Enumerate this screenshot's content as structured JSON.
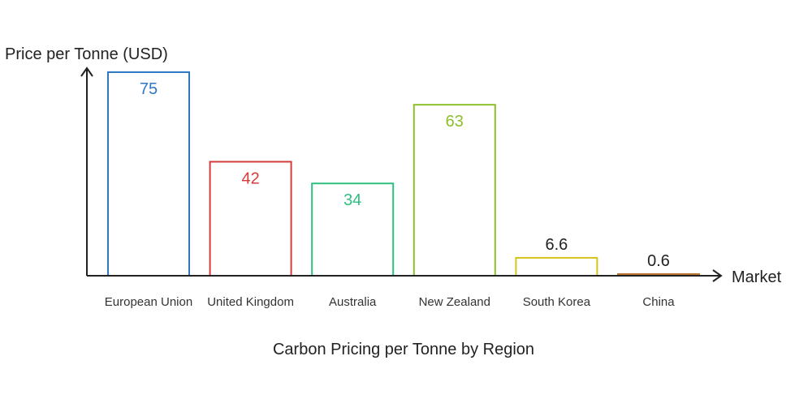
{
  "chart_data": {
    "type": "bar",
    "title": "Carbon Pricing per Tonne by Region",
    "xlabel": "Market",
    "ylabel": "Price per Tonne (USD)",
    "categories": [
      "European Union",
      "United Kingdom",
      "Australia",
      "New Zealand",
      "South Korea",
      "China"
    ],
    "values": [
      75,
      42,
      34,
      63,
      6.6,
      0.6
    ],
    "value_labels": [
      "75",
      "42",
      "34",
      "63",
      "6.6",
      "0.6"
    ],
    "colors": [
      "#2f78c4",
      "#d63b3b",
      "#2fbf7f",
      "#8cbf2a",
      "#d4c41a",
      "#b87333"
    ],
    "ylim": [
      0,
      75
    ],
    "grid": false,
    "legend": "none"
  }
}
